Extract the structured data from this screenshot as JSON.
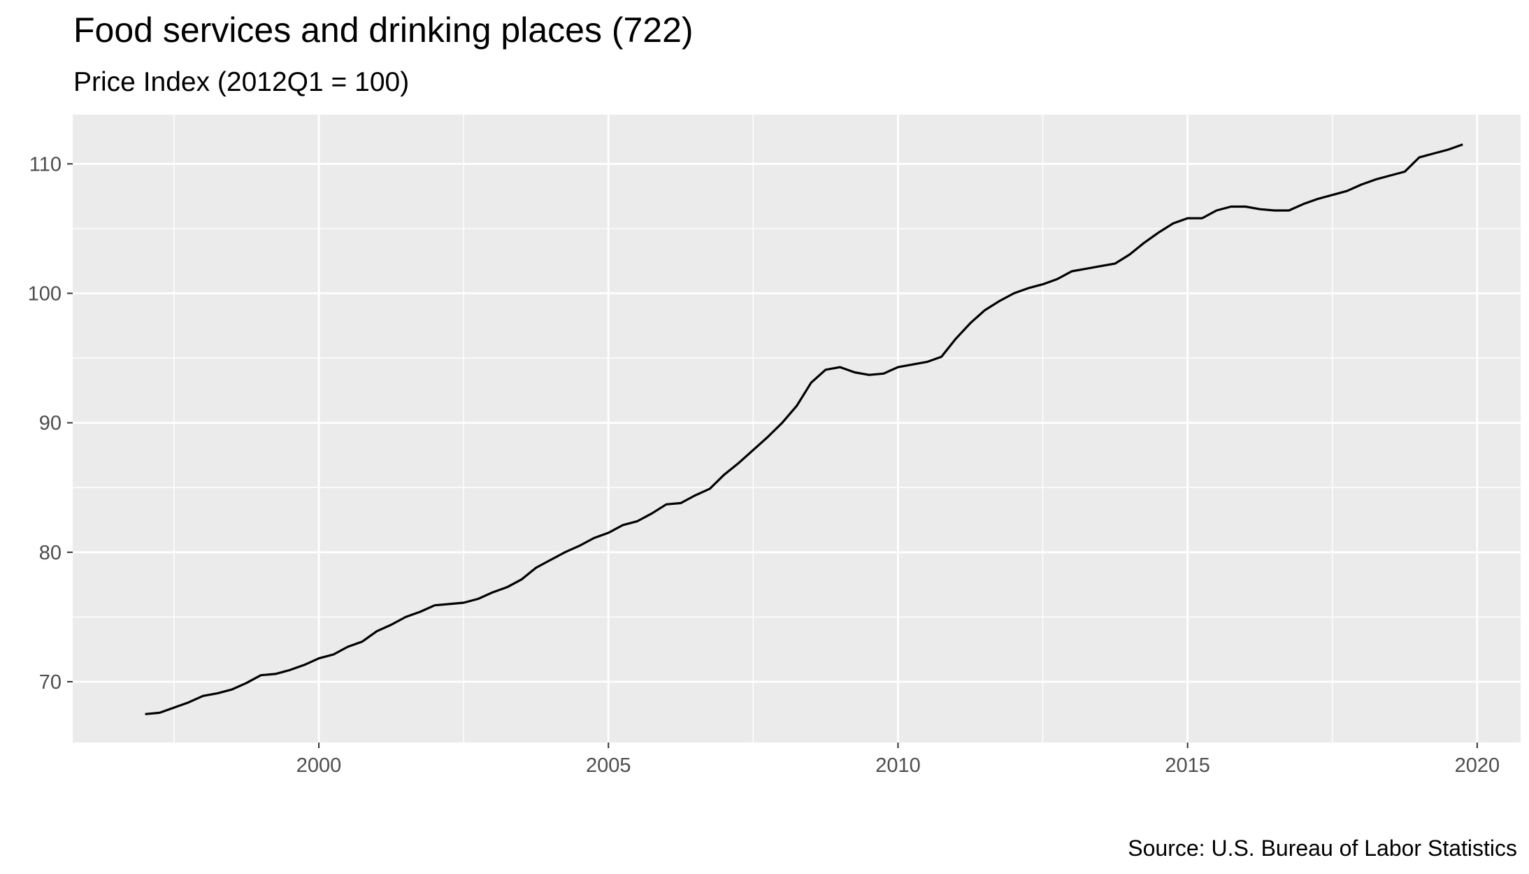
{
  "chart_data": {
    "type": "line",
    "title": "Food services and drinking places (722)",
    "subtitle": "Price Index (2012Q1 = 100)",
    "caption": "Source: U.S. Bureau of Labor Statistics",
    "xlabel": "",
    "ylabel": "",
    "xlim": [
      1995.75,
      2020.75
    ],
    "ylim": [
      65.3,
      113.8
    ],
    "x_ticks": [
      2000,
      2005,
      2010,
      2015,
      2020
    ],
    "x_tick_labels": [
      "2000",
      "2005",
      "2010",
      "2015",
      "2020"
    ],
    "y_ticks": [
      70,
      80,
      90,
      100,
      110
    ],
    "y_tick_labels": [
      "70",
      "80",
      "90",
      "100",
      "110"
    ],
    "grid": true,
    "legend": "none",
    "colors": {
      "panel": "#ebebeb",
      "grid": "#ffffff",
      "line": "#000000",
      "tick_text": "#4d4d4d"
    },
    "series": [
      {
        "x": [
          1997.0,
          1997.25,
          1997.5,
          1997.75,
          1998.0,
          1998.25,
          1998.5,
          1998.75,
          1999.0,
          1999.25,
          1999.5,
          1999.75,
          2000.0,
          2000.25,
          2000.5,
          2000.75,
          2001.0,
          2001.25,
          2001.5,
          2001.75,
          2002.0,
          2002.25,
          2002.5,
          2002.75,
          2003.0,
          2003.25,
          2003.5,
          2003.75,
          2004.0,
          2004.25,
          2004.5,
          2004.75,
          2005.0,
          2005.25,
          2005.5,
          2005.75,
          2006.0,
          2006.25,
          2006.5,
          2006.75,
          2007.0,
          2007.25,
          2007.5,
          2007.75,
          2008.0,
          2008.25,
          2008.5,
          2008.75,
          2009.0,
          2009.25,
          2009.5,
          2009.75,
          2010.0,
          2010.25,
          2010.5,
          2010.75,
          2011.0,
          2011.25,
          2011.5,
          2011.75,
          2012.0,
          2012.25,
          2012.5,
          2012.75,
          2013.0,
          2013.25,
          2013.5,
          2013.75,
          2014.0,
          2014.25,
          2014.5,
          2014.75,
          2015.0,
          2015.25,
          2015.5,
          2015.75,
          2016.0,
          2016.25,
          2016.5,
          2016.75,
          2017.0,
          2017.25,
          2017.5,
          2017.75,
          2018.0,
          2018.25,
          2018.5,
          2018.75,
          2019.0,
          2019.25,
          2019.5,
          2019.75
        ],
        "values": [
          67.5,
          67.6,
          68.0,
          68.4,
          68.9,
          69.1,
          69.4,
          69.9,
          70.5,
          70.6,
          70.9,
          71.3,
          71.8,
          72.1,
          72.7,
          73.1,
          73.9,
          74.4,
          75.0,
          75.4,
          75.9,
          76.0,
          76.1,
          76.4,
          76.9,
          77.3,
          77.9,
          78.8,
          79.4,
          80.0,
          80.5,
          81.1,
          81.5,
          82.1,
          82.4,
          83.0,
          83.7,
          83.8,
          84.4,
          84.9,
          86.0,
          86.9,
          87.9,
          88.9,
          90.0,
          91.3,
          93.1,
          94.1,
          94.3,
          93.9,
          93.7,
          93.8,
          94.3,
          94.5,
          94.7,
          95.1,
          96.5,
          97.7,
          98.7,
          99.4,
          100.0,
          100.4,
          100.7,
          101.1,
          101.7,
          101.9,
          102.1,
          102.3,
          103.0,
          103.9,
          104.7,
          105.4,
          105.8,
          105.8,
          106.4,
          106.7,
          106.7,
          106.5,
          106.4,
          106.4,
          106.9,
          107.3,
          107.6,
          107.9,
          108.4,
          108.8,
          109.1,
          109.4,
          110.5,
          110.8,
          111.1,
          111.5
        ]
      }
    ]
  }
}
